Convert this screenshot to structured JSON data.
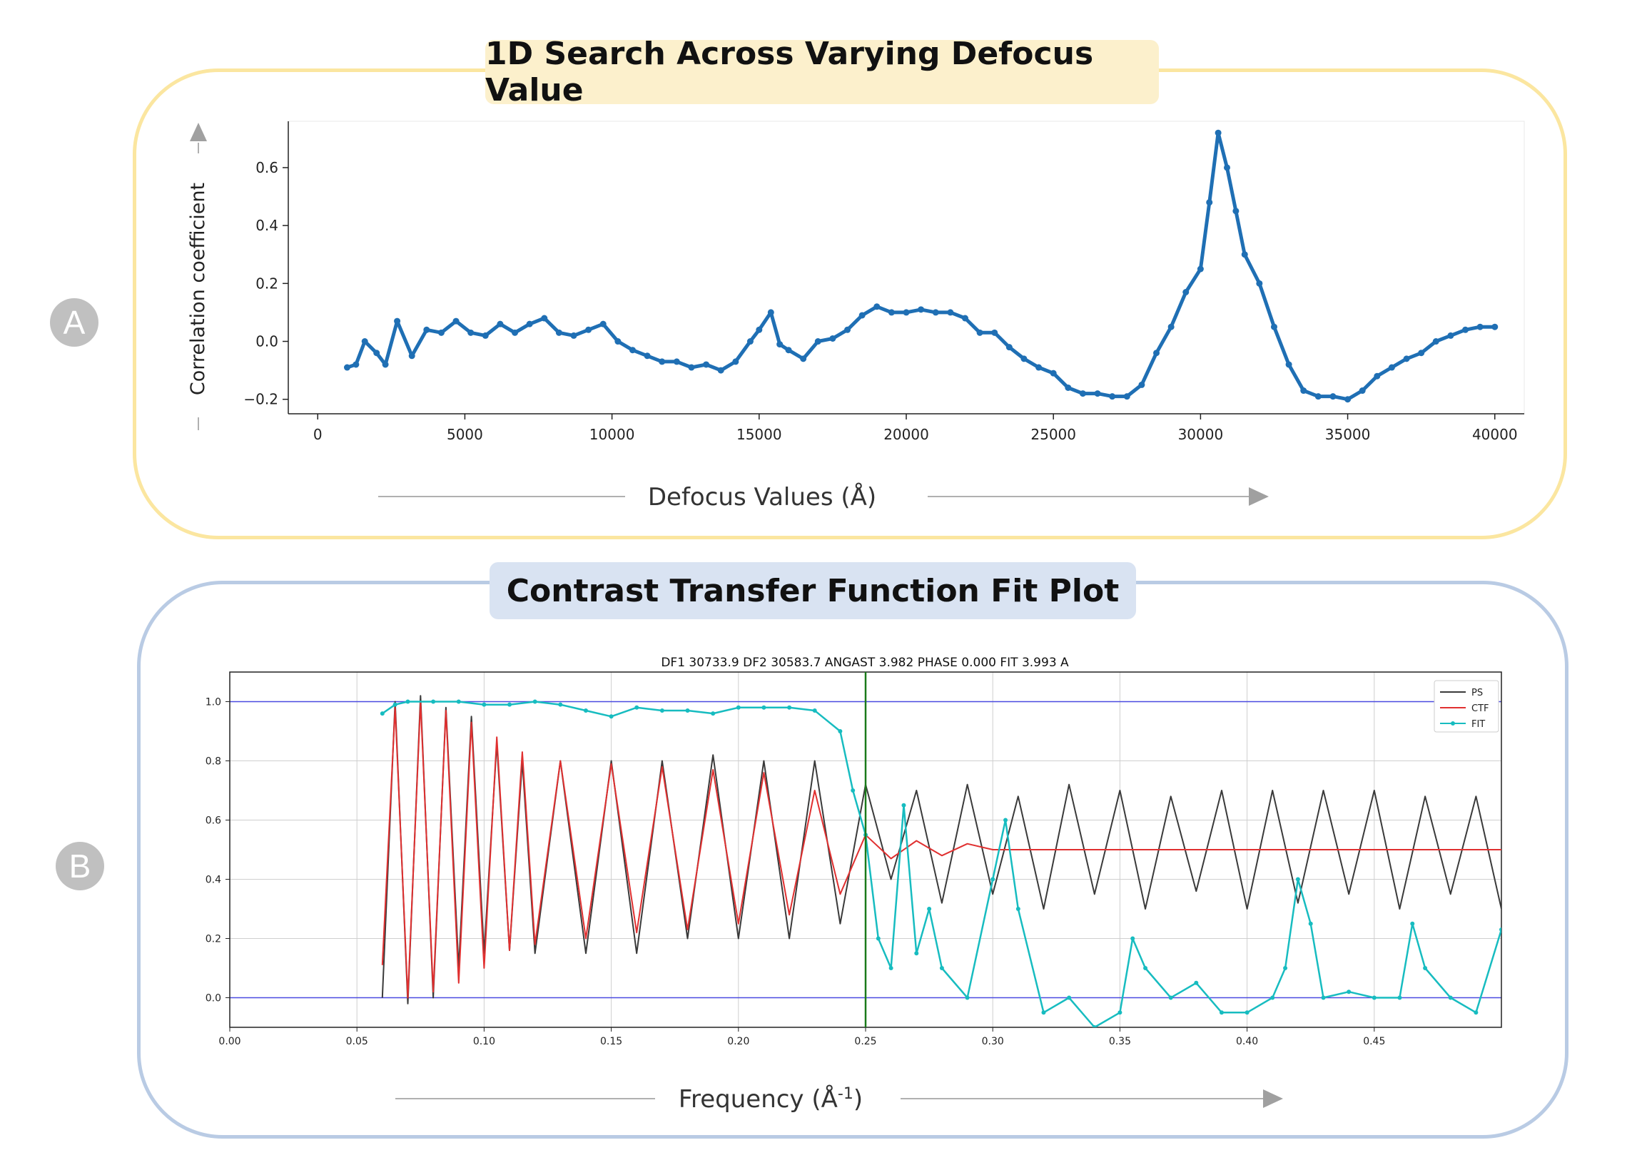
{
  "panel_a": {
    "badge": "A",
    "title": "1D Search Across Varying Defocus Value",
    "xlabel": "Defocus Values (Å)",
    "ylabel": "Correlation coefficient"
  },
  "panel_b": {
    "badge": "B",
    "title": "Contrast Transfer Function Fit Plot",
    "xlabel_main": "Frequency (Å",
    "xlabel_sup": "-1",
    "xlabel_close": ")",
    "plot_title": "DF1 30733.9 DF2 30583.7 ANGAST 3.982 PHASE 0.000 FIT 3.993 A"
  },
  "colors": {
    "series_a": "#1f6fb4",
    "ps": "#3a3a3a",
    "ctf": "#e03030",
    "fit": "#17bcc0",
    "ref_lines": "#4a4ae0",
    "vline": "#1a7a1a"
  },
  "chart_data": [
    {
      "type": "line",
      "title": "1D Search Across Varying Defocus Value",
      "xlabel": "Defocus Values (Å)",
      "ylabel": "Correlation coefficient",
      "xlim": [
        -1000,
        41000
      ],
      "ylim": [
        -0.25,
        0.76
      ],
      "xticks": [
        0,
        5000,
        10000,
        15000,
        20000,
        25000,
        30000,
        35000,
        40000
      ],
      "yticks": [
        -0.2,
        0.0,
        0.2,
        0.4,
        0.6
      ],
      "ytick_labels": [
        "−0.2",
        "0.0",
        "0.2",
        "0.4",
        "0.6"
      ],
      "series": [
        {
          "x": [
            1000,
            1300,
            1600,
            2000,
            2300,
            2700,
            3200,
            3700,
            4200,
            4700,
            5200,
            5700,
            6200,
            6700,
            7200,
            7700,
            8200,
            8700,
            9200,
            9700,
            10200,
            10700,
            11200,
            11700,
            12200,
            12700,
            13200,
            13700,
            14200,
            14700,
            15000,
            15400,
            15700,
            16000,
            16500,
            17000,
            17500,
            18000,
            18500,
            19000,
            19500,
            20000,
            20500,
            21000,
            21500,
            22000,
            22500,
            23000,
            23500,
            24000,
            24500,
            25000,
            25500,
            26000,
            26500,
            27000,
            27500,
            28000,
            28500,
            29000,
            29500,
            30000,
            30300,
            30600,
            30900,
            31200,
            31500,
            32000,
            32500,
            33000,
            33500,
            34000,
            34500,
            35000,
            35500,
            36000,
            36500,
            37000,
            37500,
            38000,
            38500,
            39000,
            39500,
            40000
          ],
          "y": [
            -0.09,
            -0.08,
            0.0,
            -0.04,
            -0.08,
            0.07,
            -0.05,
            0.04,
            0.03,
            0.07,
            0.03,
            0.02,
            0.06,
            0.03,
            0.06,
            0.08,
            0.03,
            0.02,
            0.04,
            0.06,
            0.0,
            -0.03,
            -0.05,
            -0.07,
            -0.07,
            -0.09,
            -0.08,
            -0.1,
            -0.07,
            0.0,
            0.04,
            0.1,
            -0.01,
            -0.03,
            -0.06,
            0.0,
            0.01,
            0.04,
            0.09,
            0.12,
            0.1,
            0.1,
            0.11,
            0.1,
            0.1,
            0.08,
            0.03,
            0.03,
            -0.02,
            -0.06,
            -0.09,
            -0.11,
            -0.16,
            -0.18,
            -0.18,
            -0.19,
            -0.19,
            -0.15,
            -0.04,
            0.05,
            0.17,
            0.25,
            0.48,
            0.72,
            0.6,
            0.45,
            0.3,
            0.2,
            0.05,
            -0.08,
            -0.17,
            -0.19,
            -0.19,
            -0.2,
            -0.17,
            -0.12,
            -0.09,
            -0.06,
            -0.04,
            0.0,
            0.02,
            0.04,
            0.05,
            0.05
          ]
        }
      ]
    },
    {
      "type": "line",
      "title": "DF1 30733.9 DF2 30583.7 ANGAST 3.982 PHASE 0.000 FIT 3.993 A",
      "xlabel": "Frequency (Å-1)",
      "xlim": [
        0.0,
        0.5
      ],
      "ylim": [
        -0.1,
        1.1
      ],
      "xticks": [
        0.0,
        0.05,
        0.1,
        0.15,
        0.2,
        0.25,
        0.3,
        0.35,
        0.4,
        0.45
      ],
      "xtick_labels": [
        "0.00",
        "0.05",
        "0.10",
        "0.15",
        "0.20",
        "0.25",
        "0.30",
        "0.35",
        "0.40",
        "0.45"
      ],
      "yticks": [
        0.0,
        0.2,
        0.4,
        0.6,
        0.8,
        1.0
      ],
      "ytick_labels": [
        "0.0",
        "0.2",
        "0.4",
        "0.6",
        "0.8",
        "1.0"
      ],
      "grid": true,
      "legend": "top-right",
      "reference_lines_y": [
        0.0,
        1.0
      ],
      "vline_x": 0.25,
      "series": [
        {
          "name": "PS",
          "x": [
            0.06,
            0.065,
            0.07,
            0.075,
            0.08,
            0.085,
            0.09,
            0.095,
            0.1,
            0.105,
            0.11,
            0.115,
            0.12,
            0.13,
            0.14,
            0.15,
            0.16,
            0.17,
            0.18,
            0.19,
            0.2,
            0.21,
            0.22,
            0.23,
            0.24,
            0.25,
            0.26,
            0.27,
            0.28,
            0.29,
            0.3,
            0.31,
            0.32,
            0.33,
            0.34,
            0.35,
            0.36,
            0.37,
            0.38,
            0.39,
            0.4,
            0.41,
            0.42,
            0.43,
            0.44,
            0.45,
            0.46,
            0.47,
            0.48,
            0.49,
            0.5
          ],
          "y": [
            0.0,
            1.0,
            -0.02,
            1.02,
            0.0,
            0.98,
            0.1,
            0.95,
            0.15,
            0.86,
            0.16,
            0.8,
            0.15,
            0.8,
            0.15,
            0.8,
            0.15,
            0.8,
            0.2,
            0.82,
            0.2,
            0.8,
            0.2,
            0.8,
            0.25,
            0.72,
            0.4,
            0.7,
            0.32,
            0.72,
            0.35,
            0.68,
            0.3,
            0.72,
            0.35,
            0.7,
            0.3,
            0.68,
            0.36,
            0.7,
            0.3,
            0.7,
            0.32,
            0.7,
            0.35,
            0.7,
            0.3,
            0.68,
            0.35,
            0.68,
            0.3
          ]
        },
        {
          "name": "CTF",
          "x": [
            0.06,
            0.065,
            0.07,
            0.075,
            0.08,
            0.085,
            0.09,
            0.095,
            0.1,
            0.105,
            0.11,
            0.115,
            0.12,
            0.13,
            0.14,
            0.15,
            0.16,
            0.17,
            0.18,
            0.19,
            0.2,
            0.21,
            0.22,
            0.23,
            0.24,
            0.25,
            0.26,
            0.27,
            0.28,
            0.29,
            0.3,
            0.32,
            0.34,
            0.36,
            0.38,
            0.4,
            0.42,
            0.44,
            0.46,
            0.48,
            0.5
          ],
          "y": [
            0.11,
            0.98,
            0.0,
            1.0,
            0.02,
            0.97,
            0.05,
            0.93,
            0.1,
            0.88,
            0.16,
            0.83,
            0.18,
            0.8,
            0.2,
            0.79,
            0.22,
            0.78,
            0.23,
            0.77,
            0.25,
            0.76,
            0.28,
            0.7,
            0.35,
            0.55,
            0.47,
            0.53,
            0.48,
            0.52,
            0.5,
            0.5,
            0.5,
            0.5,
            0.5,
            0.5,
            0.5,
            0.5,
            0.5,
            0.5,
            0.5
          ]
        },
        {
          "name": "FIT",
          "x": [
            0.06,
            0.065,
            0.07,
            0.08,
            0.09,
            0.1,
            0.11,
            0.12,
            0.13,
            0.14,
            0.15,
            0.16,
            0.17,
            0.18,
            0.19,
            0.2,
            0.21,
            0.22,
            0.23,
            0.24,
            0.245,
            0.25,
            0.255,
            0.26,
            0.265,
            0.27,
            0.275,
            0.28,
            0.29,
            0.3,
            0.305,
            0.31,
            0.32,
            0.33,
            0.34,
            0.35,
            0.355,
            0.36,
            0.37,
            0.38,
            0.39,
            0.4,
            0.41,
            0.415,
            0.42,
            0.425,
            0.43,
            0.44,
            0.45,
            0.46,
            0.465,
            0.47,
            0.48,
            0.49,
            0.5
          ],
          "y": [
            0.96,
            0.99,
            1.0,
            1.0,
            1.0,
            0.99,
            0.99,
            1.0,
            0.99,
            0.97,
            0.95,
            0.98,
            0.97,
            0.97,
            0.96,
            0.98,
            0.98,
            0.98,
            0.97,
            0.9,
            0.7,
            0.55,
            0.2,
            0.1,
            0.65,
            0.15,
            0.3,
            0.1,
            0.0,
            0.4,
            0.6,
            0.3,
            -0.05,
            0.0,
            -0.1,
            -0.05,
            0.2,
            0.1,
            0.0,
            0.05,
            -0.05,
            -0.05,
            0.0,
            0.1,
            0.4,
            0.25,
            0.0,
            0.02,
            0.0,
            0.0,
            0.25,
            0.1,
            0.0,
            -0.05,
            0.23
          ]
        }
      ]
    }
  ]
}
